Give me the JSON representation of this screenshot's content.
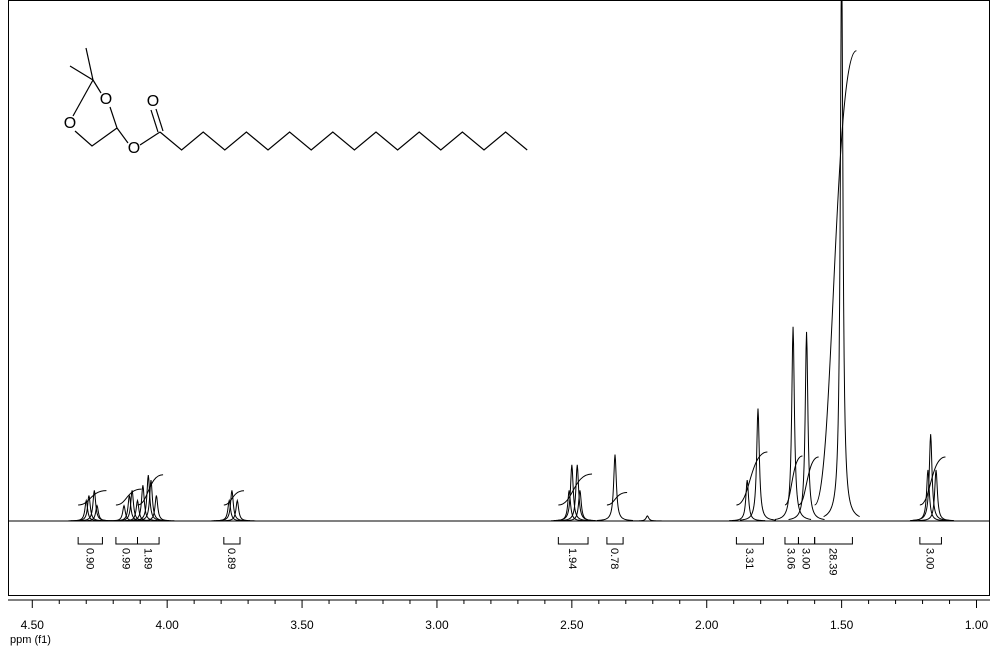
{
  "chart_data": {
    "type": "nmr",
    "x_label": "ppm (f1)",
    "xlim": [
      4.59,
      0.95
    ],
    "xticks": [
      {
        "value": 4.5,
        "label": "4.50"
      },
      {
        "value": 4.0,
        "label": "4.00"
      },
      {
        "value": 3.5,
        "label": "3.50"
      },
      {
        "value": 3.0,
        "label": "3.00"
      },
      {
        "value": 2.5,
        "label": "2.50"
      },
      {
        "value": 2.0,
        "label": "2.00"
      },
      {
        "value": 1.5,
        "label": "1.50"
      },
      {
        "value": 1.0,
        "label": "1.00"
      }
    ],
    "ylim": [
      0,
      100
    ],
    "color": "#000000",
    "peaks": {
      "x": [
        4.3,
        4.29,
        4.27,
        4.26,
        4.16,
        4.14,
        4.13,
        4.11,
        4.09,
        4.07,
        4.06,
        4.04,
        3.77,
        3.76,
        3.74,
        2.51,
        2.5,
        2.48,
        2.47,
        2.34,
        2.22,
        1.85,
        1.81,
        1.68,
        1.63,
        1.5,
        1.18,
        1.17,
        1.15
      ],
      "values": [
        4,
        5,
        6,
        3,
        3,
        5,
        6,
        4,
        7,
        9,
        8,
        5,
        4,
        6,
        4,
        6,
        11,
        11,
        6,
        13,
        1,
        8,
        22,
        38,
        37,
        110,
        10,
        17,
        10
      ]
    },
    "integrals": [
      {
        "from": 4.33,
        "to": 4.24,
        "value": 0.9,
        "label": "0.90"
      },
      {
        "from": 4.19,
        "to": 4.11,
        "value": 0.99,
        "label": "0.99"
      },
      {
        "from": 4.11,
        "to": 4.03,
        "value": 1.89,
        "label": "1.89"
      },
      {
        "from": 3.79,
        "to": 3.73,
        "value": 0.89,
        "label": "0.89"
      },
      {
        "from": 2.55,
        "to": 2.44,
        "value": 1.94,
        "label": "1.94"
      },
      {
        "from": 2.37,
        "to": 2.31,
        "value": 0.78,
        "label": "0.78"
      },
      {
        "from": 1.89,
        "to": 1.79,
        "value": 3.31,
        "label": "3.31"
      },
      {
        "from": 1.71,
        "to": 1.66,
        "value": 3.06,
        "label": "3.06"
      },
      {
        "from": 1.66,
        "to": 1.6,
        "value": 3.0,
        "label": "3.00"
      },
      {
        "from": 1.6,
        "to": 1.46,
        "value": 28.39,
        "label": "28.39"
      },
      {
        "from": 1.21,
        "to": 1.13,
        "value": 3.0,
        "label": "3.00"
      }
    ],
    "annotations": [
      "O",
      "O",
      "O",
      "O"
    ]
  }
}
